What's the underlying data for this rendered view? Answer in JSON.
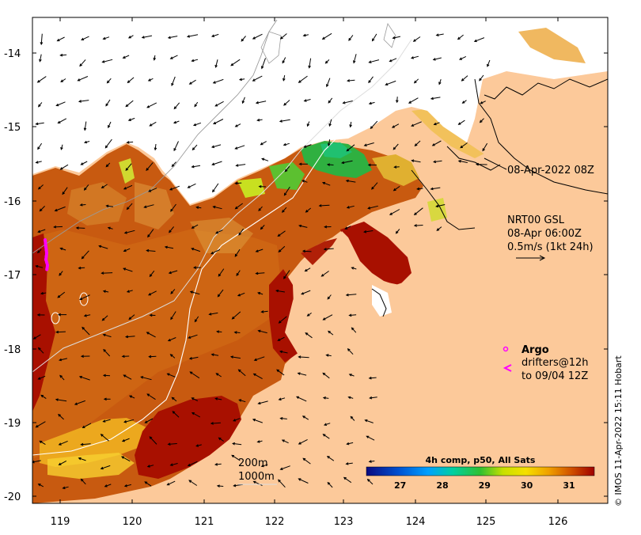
{
  "map": {
    "y_ticks": [
      "-14",
      "-15",
      "-16",
      "-17",
      "-18",
      "-19",
      "-20"
    ],
    "x_ticks": [
      "119",
      "120",
      "121",
      "122",
      "123",
      "124",
      "125",
      "126"
    ],
    "land_color": "#fcc99a",
    "cloud_color": "#ffffff"
  },
  "annotations": {
    "timestamp": "08-Apr-2022 08Z",
    "currents_line1": "NRT00 GSL",
    "currents_line2": "08-Apr 06:00Z",
    "currents_line3": "0.5m/s (1kt 24h)"
  },
  "legend": {
    "argo_label": "Argo",
    "drifters_line1": "drifters@12h",
    "drifters_line2": "to 09/04 12Z",
    "argo_color": "#ff00ff"
  },
  "contours": {
    "label_200": "200m",
    "label_1000": "1000m"
  },
  "colorbar": {
    "title": "4h comp, p50, All Sats",
    "ticks": [
      "27",
      "28",
      "29",
      "30",
      "31"
    ],
    "tick_values": [
      27,
      28,
      29,
      30,
      31
    ],
    "range": [
      26.2,
      31.6
    ]
  },
  "credit": "© IMOS 11-Apr-2022 15:11 Hobart"
}
